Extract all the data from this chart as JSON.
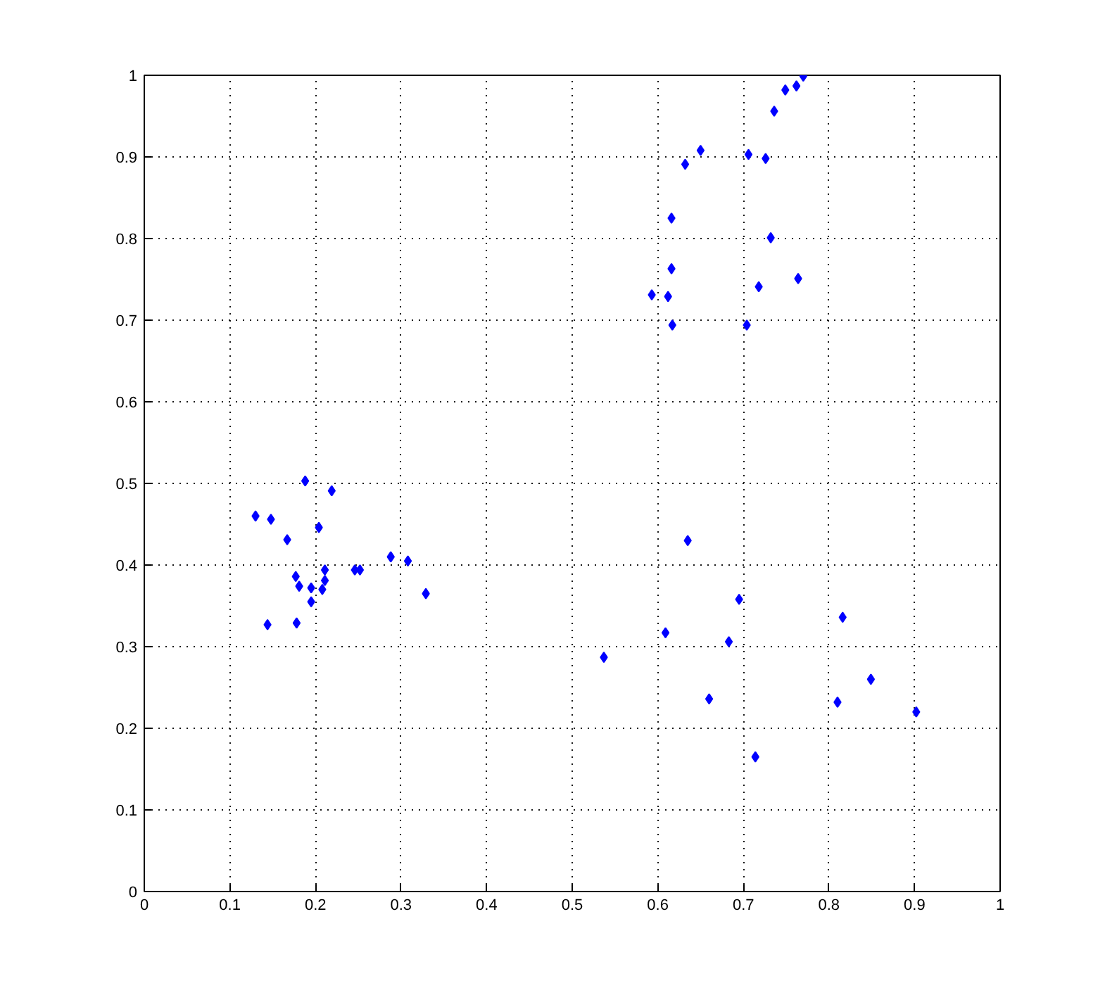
{
  "chart_data": {
    "type": "scatter",
    "marker": "diamond",
    "grid": true,
    "line_style": "dotted",
    "xlim": [
      0,
      1
    ],
    "ylim": [
      0,
      1
    ],
    "xticks": [
      0,
      0.1,
      0.2,
      0.3,
      0.4,
      0.5,
      0.6,
      0.7,
      0.8,
      0.9,
      1
    ],
    "yticks": [
      0,
      0.1,
      0.2,
      0.3,
      0.4,
      0.5,
      0.6,
      0.7,
      0.8,
      0.9,
      1
    ],
    "series": [
      {
        "color": "#0000ff",
        "x": [
          0.188,
          0.219,
          0.13,
          0.148,
          0.167,
          0.204,
          0.288,
          0.308,
          0.211,
          0.246,
          0.252,
          0.177,
          0.211,
          0.181,
          0.195,
          0.208,
          0.329,
          0.195,
          0.144,
          0.178,
          0.77,
          0.762,
          0.749,
          0.736,
          0.65,
          0.632,
          0.706,
          0.726,
          0.616,
          0.732,
          0.616,
          0.764,
          0.718,
          0.593,
          0.612,
          0.617,
          0.704,
          0.635,
          0.695,
          0.816,
          0.609,
          0.683,
          0.537,
          0.849,
          0.66,
          0.81,
          0.902,
          0.714
        ],
        "values": [
          0.503,
          0.491,
          0.46,
          0.456,
          0.431,
          0.446,
          0.41,
          0.405,
          0.394,
          0.394,
          0.394,
          0.386,
          0.381,
          0.374,
          0.372,
          0.37,
          0.365,
          0.355,
          0.327,
          0.329,
          0.999,
          0.987,
          0.982,
          0.956,
          0.908,
          0.891,
          0.903,
          0.898,
          0.825,
          0.801,
          0.763,
          0.751,
          0.741,
          0.731,
          0.729,
          0.694,
          0.694,
          0.43,
          0.358,
          0.336,
          0.317,
          0.306,
          0.287,
          0.26,
          0.236,
          0.232,
          0.22,
          0.165
        ]
      }
    ]
  }
}
